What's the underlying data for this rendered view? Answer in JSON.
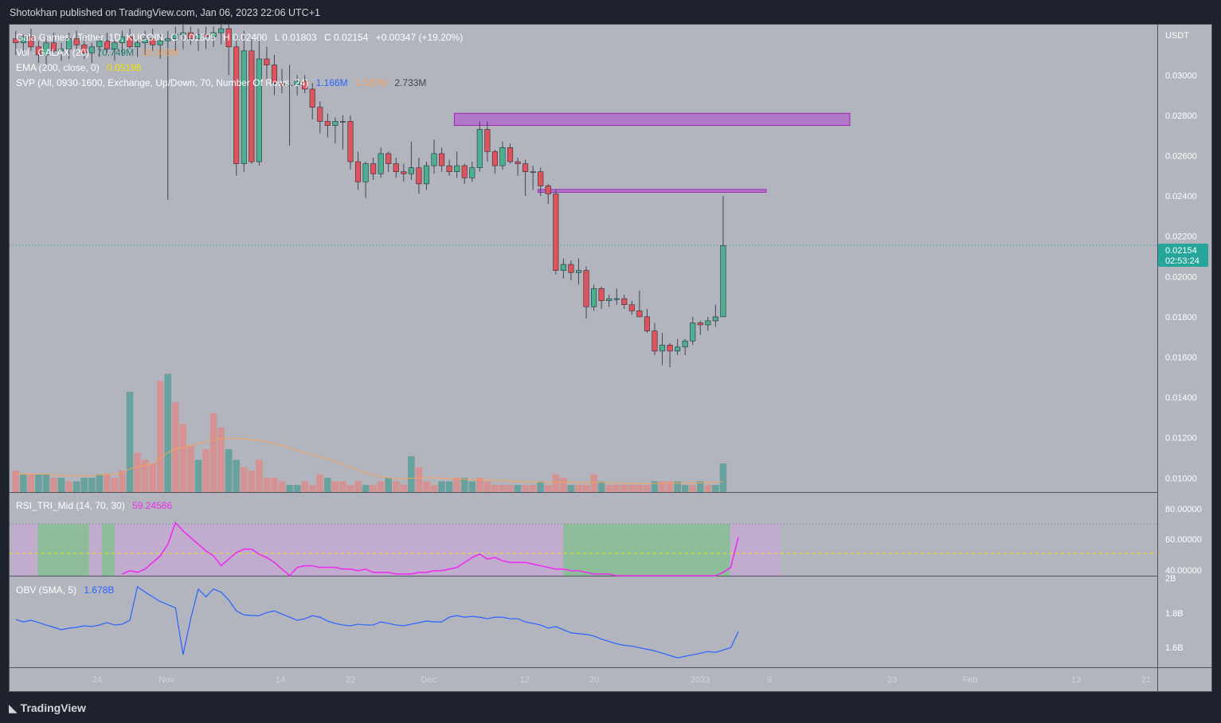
{
  "header": {
    "published": "Shotokhan published on TradingView.com, Jan 06, 2023 22:06 UTC+1"
  },
  "footer": {
    "brand": "TradingView"
  },
  "colors": {
    "up": "#4caf8f",
    "down": "#e0535c",
    "volUp": "#5a9e98",
    "volDown": "#d98c8c",
    "zone": "#b050d0",
    "rsi": "#ee2eee",
    "obv": "#2962ff",
    "ema": "#f5a25d",
    "priceTag": "#26a69a",
    "bg": "#b2b5be"
  },
  "legend": {
    "title": "Gala Games / Tether, 1D, KUCOIN",
    "o_label": "O",
    "o": "0.01805",
    "h_label": "H",
    "h": "0.02400",
    "l_label": "L",
    "l": "0.01803",
    "c_label": "C",
    "c": "0.02154",
    "change": "+0.00347 (+19.20%)",
    "vol_label": "Vol · GALAX (20)",
    "vol1": "70.749M",
    "vol2": "19.246M",
    "ema_label": "EMA (200, close, 0)",
    "ema_val": "0.05196",
    "svp_label": "SVP (All, 0930-1600, Exchange, Up/Down, 70, Number Of Rows, 24)",
    "svp1": "1.166M",
    "svp2": "1.567M",
    "svp3": "2.733M"
  },
  "price_axis": {
    "currency": "USDT",
    "ticks": [
      "0.03000",
      "0.02800",
      "0.02600",
      "0.02400",
      "0.02200",
      "0.02000",
      "0.01800",
      "0.01600",
      "0.01400",
      "0.01200",
      "0.01000"
    ],
    "last_price": "0.02154",
    "countdown": "02:53:24"
  },
  "rsi": {
    "label": "RSI_TRI_Mid (14, 70, 30)",
    "value": "59.24586",
    "ticks": [
      "80.00000",
      "60.00000",
      "40.00000"
    ]
  },
  "obv": {
    "label": "OBV (SMA, 5)",
    "value": "1.678B",
    "ticks": [
      "2B",
      "1.8B",
      "1.6B"
    ]
  },
  "time_axis": {
    "ticks": [
      "24",
      "Nov",
      "14",
      "22",
      "Dec",
      "12",
      "20",
      "2023",
      "9",
      "23",
      "Feb",
      "13",
      "21"
    ]
  },
  "chart_data": {
    "type": "candlestick",
    "symbol": "GALA/USDT",
    "interval": "1D",
    "ylim": [
      0.0093,
      0.0325
    ],
    "resistance_zones": [
      {
        "from_index": 58,
        "to_index": 110,
        "low": 0.0275,
        "high": 0.0281
      },
      {
        "from_index": 69,
        "to_index": 99,
        "low": 0.02418,
        "high": 0.02432
      }
    ],
    "last_price": 0.02154,
    "candles": [
      [
        0.0318,
        0.0322,
        0.031,
        0.0316
      ],
      [
        0.0316,
        0.032,
        0.0311,
        0.0319
      ],
      [
        0.0319,
        0.0323,
        0.0312,
        0.0314
      ],
      [
        0.0314,
        0.0317,
        0.0306,
        0.031
      ],
      [
        0.031,
        0.0319,
        0.0305,
        0.0316
      ],
      [
        0.0316,
        0.0321,
        0.0311,
        0.0312
      ],
      [
        0.0312,
        0.0316,
        0.0307,
        0.0313
      ],
      [
        0.0313,
        0.0321,
        0.0308,
        0.0318
      ],
      [
        0.0318,
        0.0322,
        0.0312,
        0.0315
      ],
      [
        0.0315,
        0.0319,
        0.0308,
        0.0311
      ],
      [
        0.0311,
        0.0316,
        0.0306,
        0.0314
      ],
      [
        0.0314,
        0.032,
        0.0309,
        0.0317
      ],
      [
        0.0317,
        0.0321,
        0.0311,
        0.0313
      ],
      [
        0.0313,
        0.0318,
        0.0307,
        0.0316
      ],
      [
        0.0316,
        0.0322,
        0.031,
        0.0319
      ],
      [
        0.0319,
        0.0323,
        0.0313,
        0.0314
      ],
      [
        0.0314,
        0.0318,
        0.0309,
        0.0316
      ],
      [
        0.0316,
        0.0322,
        0.031,
        0.0318
      ],
      [
        0.0318,
        0.0323,
        0.0312,
        0.0315
      ],
      [
        0.0315,
        0.032,
        0.0308,
        0.0317
      ],
      [
        0.0317,
        0.0322,
        0.0238,
        0.0318
      ],
      [
        0.0318,
        0.0324,
        0.0312,
        0.032
      ],
      [
        0.032,
        0.0325,
        0.0313,
        0.0321
      ],
      [
        0.0321,
        0.0324,
        0.0315,
        0.0318
      ],
      [
        0.0318,
        0.0323,
        0.0312,
        0.032
      ],
      [
        0.032,
        0.0324,
        0.0313,
        0.0319
      ],
      [
        0.0319,
        0.0324,
        0.0314,
        0.0321
      ],
      [
        0.0321,
        0.0325,
        0.0315,
        0.0323
      ],
      [
        0.0323,
        0.0325,
        0.03,
        0.0314
      ],
      [
        0.0314,
        0.032,
        0.025,
        0.0256
      ],
      [
        0.0256,
        0.0322,
        0.0252,
        0.0312
      ],
      [
        0.0312,
        0.0318,
        0.0256,
        0.0257
      ],
      [
        0.0257,
        0.0318,
        0.0255,
        0.0308
      ],
      [
        0.0308,
        0.0314,
        0.0295,
        0.0305
      ],
      [
        0.0305,
        0.031,
        0.029,
        0.0296
      ],
      [
        0.0296,
        0.0303,
        0.0291,
        0.0295
      ],
      [
        0.0295,
        0.0305,
        0.0265,
        0.0295
      ],
      [
        0.0295,
        0.03,
        0.029,
        0.0297
      ],
      [
        0.0297,
        0.03,
        0.0291,
        0.0293
      ],
      [
        0.0293,
        0.0296,
        0.0278,
        0.0284
      ],
      [
        0.0284,
        0.0287,
        0.0271,
        0.0277
      ],
      [
        0.0277,
        0.0281,
        0.0269,
        0.0275
      ],
      [
        0.0275,
        0.0279,
        0.0266,
        0.0277
      ],
      [
        0.0277,
        0.028,
        0.0263,
        0.0277
      ],
      [
        0.0277,
        0.028,
        0.0253,
        0.0257
      ],
      [
        0.0257,
        0.0262,
        0.0243,
        0.0247
      ],
      [
        0.0247,
        0.0257,
        0.0239,
        0.0256
      ],
      [
        0.0256,
        0.0259,
        0.0248,
        0.0251
      ],
      [
        0.0251,
        0.0264,
        0.0249,
        0.0261
      ],
      [
        0.0261,
        0.0262,
        0.0252,
        0.0256
      ],
      [
        0.0256,
        0.0259,
        0.0249,
        0.0252
      ],
      [
        0.0252,
        0.0256,
        0.0247,
        0.0251
      ],
      [
        0.0251,
        0.0267,
        0.0248,
        0.0254
      ],
      [
        0.0254,
        0.0259,
        0.0241,
        0.0246
      ],
      [
        0.0246,
        0.0257,
        0.0243,
        0.0255
      ],
      [
        0.0255,
        0.0268,
        0.0251,
        0.0261
      ],
      [
        0.0261,
        0.0264,
        0.0252,
        0.0255
      ],
      [
        0.0255,
        0.0258,
        0.025,
        0.0252
      ],
      [
        0.0252,
        0.0262,
        0.0249,
        0.0255
      ],
      [
        0.0255,
        0.0256,
        0.0246,
        0.0249
      ],
      [
        0.0249,
        0.0257,
        0.0247,
        0.0254
      ],
      [
        0.0254,
        0.0277,
        0.0252,
        0.0273
      ],
      [
        0.0273,
        0.0277,
        0.0257,
        0.0262
      ],
      [
        0.0262,
        0.0263,
        0.0251,
        0.0255
      ],
      [
        0.0255,
        0.0267,
        0.0253,
        0.0264
      ],
      [
        0.0264,
        0.0266,
        0.0256,
        0.0257
      ],
      [
        0.0257,
        0.0259,
        0.025,
        0.0256
      ],
      [
        0.0256,
        0.0258,
        0.024,
        0.0252
      ],
      [
        0.0252,
        0.0255,
        0.0243,
        0.0252
      ],
      [
        0.0252,
        0.0254,
        0.024,
        0.0245
      ],
      [
        0.0245,
        0.0246,
        0.0236,
        0.0241
      ],
      [
        0.0241,
        0.0243,
        0.0201,
        0.0203
      ],
      [
        0.0203,
        0.0209,
        0.0199,
        0.0206
      ],
      [
        0.0206,
        0.0208,
        0.0198,
        0.0202
      ],
      [
        0.0202,
        0.0209,
        0.0196,
        0.0203
      ],
      [
        0.0203,
        0.0205,
        0.0179,
        0.0185
      ],
      [
        0.0185,
        0.0196,
        0.0183,
        0.0194
      ],
      [
        0.0194,
        0.0195,
        0.0184,
        0.0188
      ],
      [
        0.0188,
        0.0191,
        0.0185,
        0.0189
      ],
      [
        0.0189,
        0.0194,
        0.0186,
        0.0189
      ],
      [
        0.0189,
        0.0191,
        0.0184,
        0.0186
      ],
      [
        0.0186,
        0.0188,
        0.0181,
        0.0183
      ],
      [
        0.0183,
        0.0193,
        0.018,
        0.018
      ],
      [
        0.018,
        0.0184,
        0.0172,
        0.0173
      ],
      [
        0.0173,
        0.0177,
        0.0161,
        0.0163
      ],
      [
        0.0163,
        0.0172,
        0.0156,
        0.0166
      ],
      [
        0.0166,
        0.0167,
        0.0155,
        0.0163
      ],
      [
        0.0163,
        0.0169,
        0.0161,
        0.0165
      ],
      [
        0.0165,
        0.0169,
        0.0161,
        0.0168
      ],
      [
        0.0168,
        0.018,
        0.0166,
        0.0177
      ],
      [
        0.0177,
        0.0178,
        0.0171,
        0.0176
      ],
      [
        0.0176,
        0.018,
        0.0173,
        0.0178
      ],
      [
        0.0178,
        0.0186,
        0.0175,
        0.018
      ],
      [
        0.018,
        0.024,
        0.018,
        0.02154
      ]
    ],
    "volume": [
      [
        6,
        0
      ],
      [
        5,
        1
      ],
      [
        5,
        0
      ],
      [
        5,
        1
      ],
      [
        5,
        1
      ],
      [
        4,
        0
      ],
      [
        4,
        1
      ],
      [
        3,
        0
      ],
      [
        3,
        1
      ],
      [
        4,
        1
      ],
      [
        4,
        1
      ],
      [
        5,
        1
      ],
      [
        5,
        0
      ],
      [
        4,
        0
      ],
      [
        6,
        0
      ],
      [
        28,
        1
      ],
      [
        11,
        0
      ],
      [
        9,
        0
      ],
      [
        8,
        0
      ],
      [
        31,
        0
      ],
      [
        33,
        1
      ],
      [
        25,
        0
      ],
      [
        19,
        0
      ],
      [
        13,
        0
      ],
      [
        9,
        1
      ],
      [
        12,
        0
      ],
      [
        22,
        0
      ],
      [
        18,
        0
      ],
      [
        12,
        1
      ],
      [
        9,
        1
      ],
      [
        7,
        0
      ],
      [
        6,
        0
      ],
      [
        9,
        0
      ],
      [
        4,
        0
      ],
      [
        4,
        0
      ],
      [
        3,
        0
      ],
      [
        2,
        1
      ],
      [
        2,
        1
      ],
      [
        3,
        0
      ],
      [
        2,
        0
      ],
      [
        5,
        0
      ],
      [
        4,
        1
      ],
      [
        3,
        0
      ],
      [
        3,
        0
      ],
      [
        2,
        0
      ],
      [
        3,
        0
      ],
      [
        2,
        1
      ],
      [
        2,
        0
      ],
      [
        3,
        0
      ],
      [
        4,
        1
      ],
      [
        3,
        0
      ],
      [
        2,
        0
      ],
      [
        10,
        1
      ],
      [
        7,
        0
      ],
      [
        3,
        0
      ],
      [
        2,
        0
      ],
      [
        3,
        1
      ],
      [
        3,
        1
      ],
      [
        4,
        0
      ],
      [
        4,
        1
      ],
      [
        3,
        1
      ],
      [
        4,
        0
      ],
      [
        3,
        0
      ],
      [
        2,
        0
      ],
      [
        2,
        0
      ],
      [
        2,
        0
      ],
      [
        2,
        1
      ],
      [
        2,
        0
      ],
      [
        2,
        0
      ],
      [
        3,
        1
      ],
      [
        2,
        0
      ],
      [
        5,
        0
      ],
      [
        4,
        0
      ],
      [
        2,
        1
      ],
      [
        2,
        0
      ],
      [
        2,
        0
      ],
      [
        5,
        0
      ],
      [
        3,
        1
      ],
      [
        2,
        0
      ],
      [
        2,
        0
      ],
      [
        2,
        0
      ],
      [
        2,
        0
      ],
      [
        2,
        0
      ],
      [
        2,
        0
      ],
      [
        3,
        1
      ],
      [
        3,
        0
      ],
      [
        3,
        0
      ],
      [
        3,
        1
      ],
      [
        2,
        1
      ],
      [
        2,
        0
      ],
      [
        3,
        1
      ],
      [
        2,
        0
      ],
      [
        2,
        1
      ],
      [
        8,
        1
      ]
    ],
    "volume_ma": [
      5,
      5,
      5,
      5,
      5,
      4.8,
      4.7,
      4.6,
      4.5,
      4.5,
      4.6,
      4.8,
      5,
      5,
      5.3,
      6.5,
      7,
      7.5,
      8,
      9.5,
      11,
      12,
      12.5,
      13,
      13.5,
      14,
      14.6,
      15,
      15,
      15,
      14.8,
      14.6,
      14.5,
      14,
      13.5,
      13,
      12.3,
      11.6,
      11,
      10.4,
      9.8,
      9.2,
      8.5,
      7.8,
      7,
      6.2,
      5.4,
      4.8,
      4.3,
      4,
      3.8,
      3.7,
      3.9,
      4,
      4,
      4,
      3.9,
      3.8,
      3.7,
      3.6,
      3.5,
      3.5,
      3.4,
      3.3,
      3.2,
      3.1,
      3,
      2.9,
      2.8,
      2.8,
      2.7,
      2.8,
      2.8,
      2.7,
      2.6,
      2.6,
      2.7,
      2.7,
      2.6,
      2.5,
      2.5,
      2.4,
      2.4,
      2.4,
      2.4,
      2.5,
      2.5,
      2.5,
      2.5,
      2.5,
      2.6,
      2.6,
      2.7,
      3
    ],
    "rsi_values": [
      null,
      null,
      null,
      null,
      null,
      null,
      null,
      null,
      null,
      null,
      null,
      null,
      null,
      null,
      37,
      39,
      38,
      40,
      44,
      48,
      55,
      68,
      63,
      59,
      55,
      51,
      48,
      42,
      46,
      50,
      52,
      52,
      49,
      47,
      44,
      40,
      36,
      41,
      42,
      42,
      41,
      41,
      41,
      40,
      40,
      39,
      40,
      38,
      38,
      38,
      37,
      37,
      37,
      38,
      38,
      39,
      39,
      40,
      41,
      44,
      47,
      49,
      46,
      47,
      45,
      44,
      44,
      44,
      43,
      42,
      41,
      40,
      40,
      39,
      39,
      38,
      37,
      37,
      37,
      36,
      35,
      35,
      35,
      34,
      34,
      33,
      33,
      33,
      33,
      34,
      34,
      35,
      36,
      38,
      41,
      59.2
    ],
    "rsi_zones": [
      {
        "from_index": 0,
        "to_index": 2,
        "state": "neutral"
      },
      {
        "from_index": 2,
        "to_index": 6,
        "state": "bull"
      },
      {
        "from_index": 6,
        "to_index": 7,
        "state": "neutral"
      },
      {
        "from_index": 7,
        "to_index": 8,
        "state": "bull"
      },
      {
        "from_index": 8,
        "to_index": 43,
        "state": "neutral"
      },
      {
        "from_index": 43,
        "to_index": 56,
        "state": "bull"
      },
      {
        "from_index": 56,
        "to_index": 60,
        "state": "neutral"
      }
    ],
    "obv_values": [
      1.755,
      1.74,
      1.75,
      1.735,
      1.72,
      1.705,
      1.69,
      1.7,
      1.705,
      1.715,
      1.71,
      1.72,
      1.735,
      1.72,
      1.725,
      1.75,
      1.965,
      1.93,
      1.9,
      1.87,
      1.85,
      1.83,
      1.53,
      1.76,
      1.95,
      1.9,
      1.95,
      1.93,
      1.88,
      1.81,
      1.785,
      1.78,
      1.78,
      1.8,
      1.81,
      1.79,
      1.77,
      1.75,
      1.76,
      1.78,
      1.77,
      1.745,
      1.73,
      1.72,
      1.715,
      1.725,
      1.72,
      1.72,
      1.74,
      1.73,
      1.72,
      1.715,
      1.725,
      1.735,
      1.745,
      1.74,
      1.74,
      1.77,
      1.78,
      1.77,
      1.775,
      1.77,
      1.76,
      1.77,
      1.77,
      1.76,
      1.76,
      1.74,
      1.73,
      1.72,
      1.7,
      1.71,
      1.69,
      1.67,
      1.665,
      1.66,
      1.65,
      1.63,
      1.615,
      1.6,
      1.59,
      1.585,
      1.575,
      1.565,
      1.555,
      1.54,
      1.525,
      1.51,
      1.52,
      1.53,
      1.54,
      1.55,
      1.545,
      1.56,
      1.575,
      1.678
    ]
  }
}
